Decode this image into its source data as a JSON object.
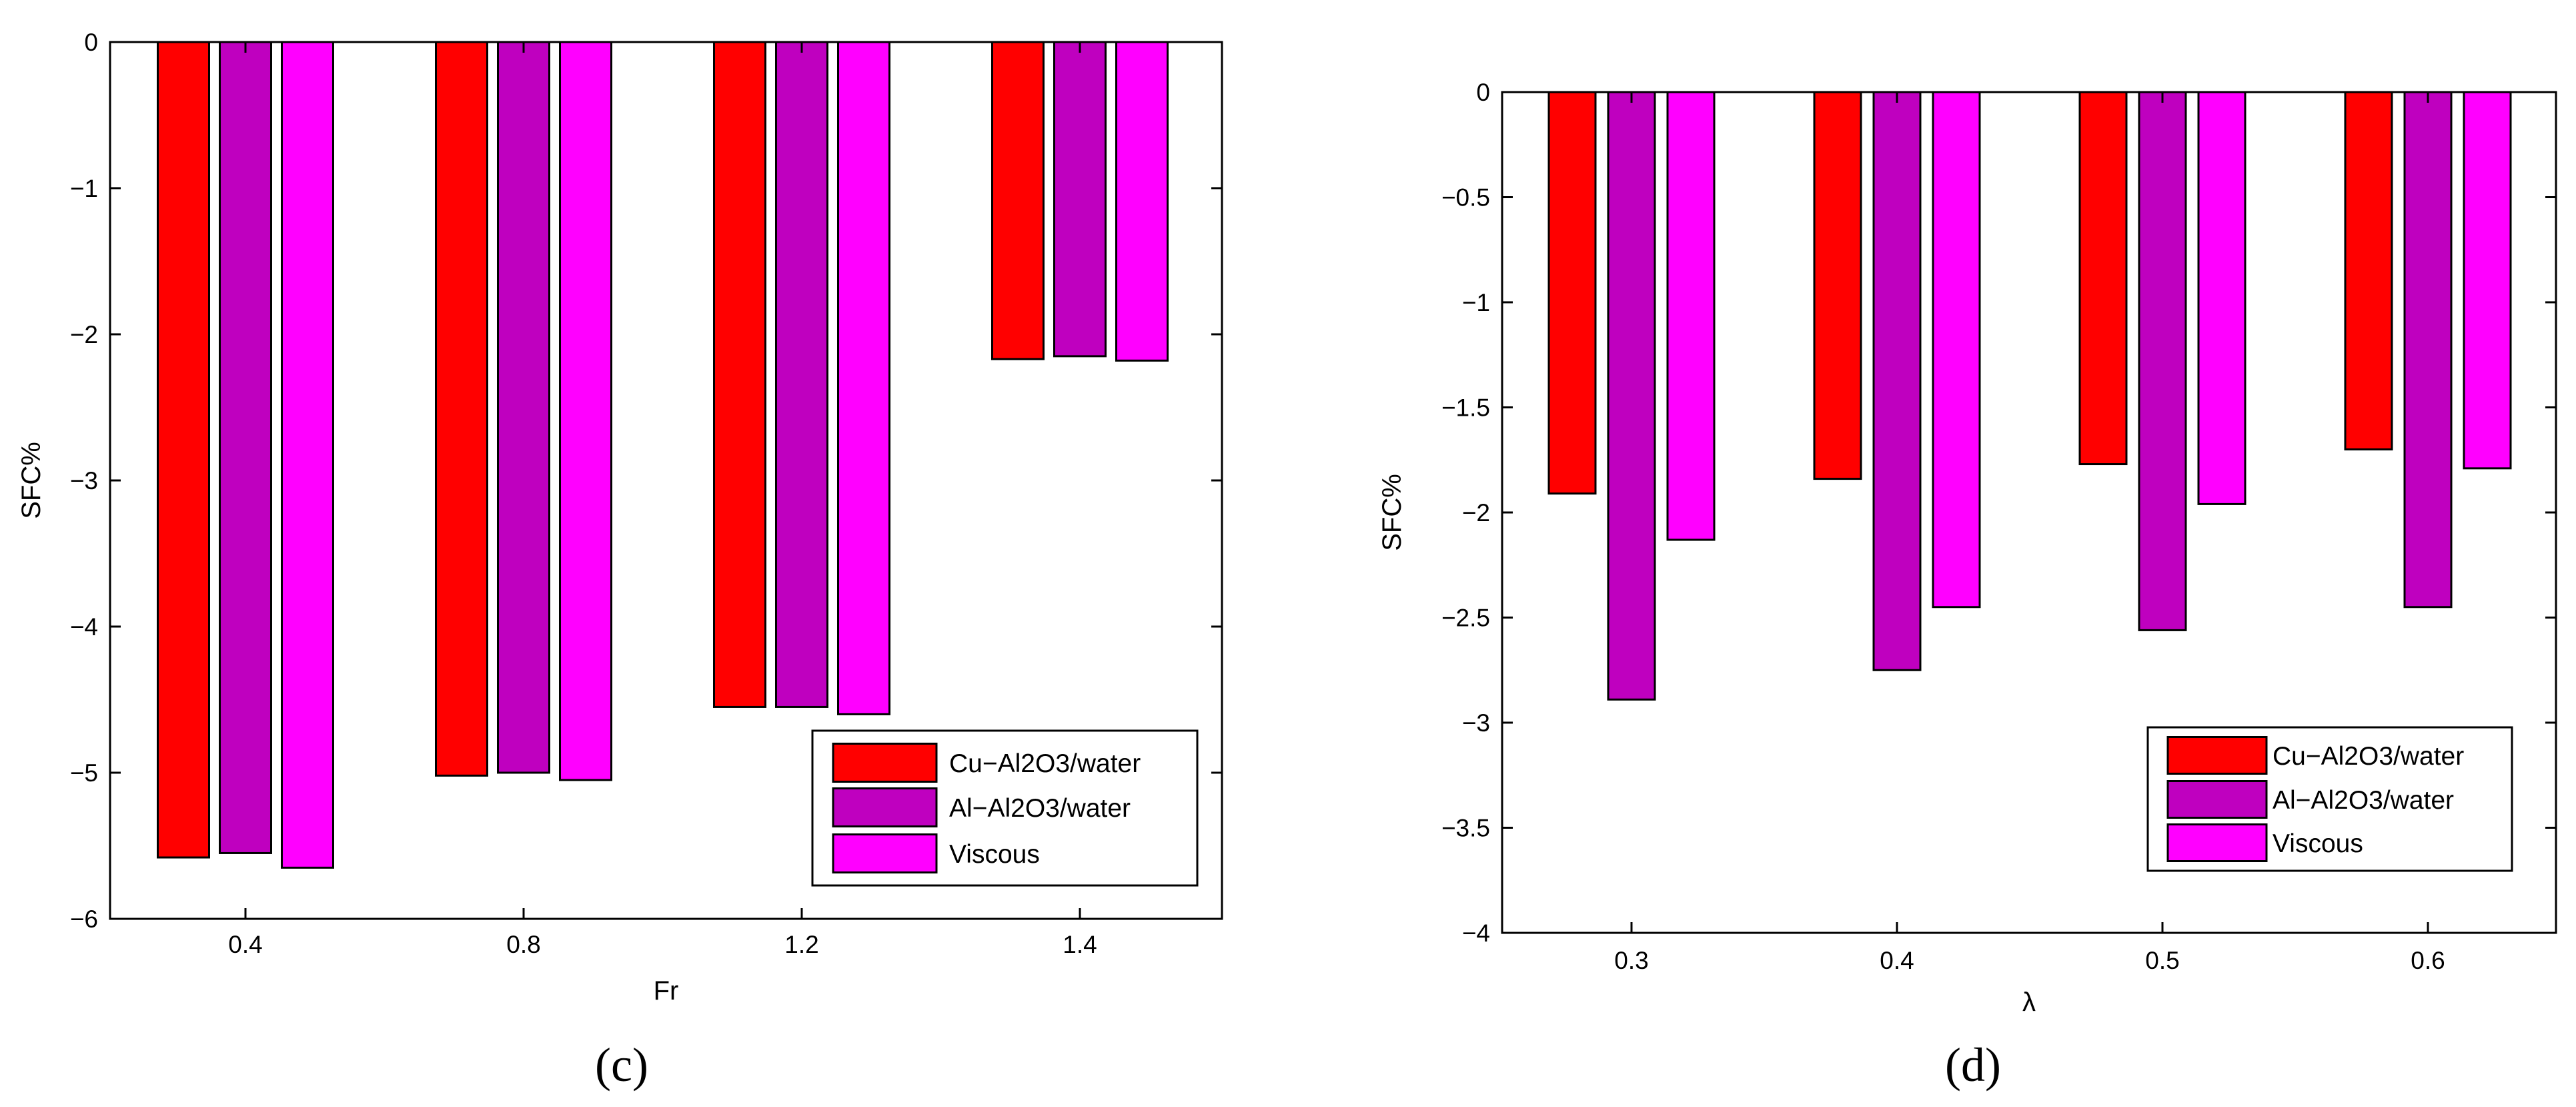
{
  "chart_data": [
    {
      "type": "bar",
      "panel_label": "(c)",
      "categories": [
        "0.4",
        "0.8",
        "1.2",
        "1.4"
      ],
      "series": [
        {
          "name": "Cu-Al2O3/water",
          "color": "#ff0000",
          "values": [
            -5.58,
            -5.02,
            -4.55,
            -2.17
          ]
        },
        {
          "name": "Al-Al2O3/water",
          "color": "#bf00bf",
          "values": [
            -5.55,
            -5.0,
            -4.55,
            -2.15
          ]
        },
        {
          "name": "Viscous",
          "color": "#ff00ff",
          "values": [
            -5.65,
            -5.05,
            -4.6,
            -2.18
          ]
        }
      ],
      "title": "",
      "xlabel": "Fr",
      "ylabel": "SFC%",
      "ylim": [
        -6,
        0
      ],
      "yticks": [
        0,
        -1,
        -2,
        -3,
        -4,
        -5,
        -6
      ],
      "ytick_labels": [
        "0",
        "−1",
        "−2",
        "−3",
        "−4",
        "−5",
        "−6"
      ],
      "legend_position": "bottom-right",
      "grid": false
    },
    {
      "type": "bar",
      "panel_label": "(d)",
      "categories": [
        "0.3",
        "0.4",
        "0.5",
        "0.6"
      ],
      "series": [
        {
          "name": "Cu-Al2O3/water",
          "color": "#ff0000",
          "values": [
            -1.91,
            -1.84,
            -1.77,
            -1.7
          ]
        },
        {
          "name": "Al-Al2O3/water",
          "color": "#bf00bf",
          "values": [
            -2.89,
            -2.75,
            -2.56,
            -2.45
          ]
        },
        {
          "name": "Viscous",
          "color": "#ff00ff",
          "values": [
            -2.13,
            -2.45,
            -1.96,
            -1.79
          ]
        }
      ],
      "title": "",
      "xlabel": "λ",
      "ylabel": "SFC%",
      "ylim": [
        -4,
        0
      ],
      "yticks": [
        0,
        -0.5,
        -1,
        -1.5,
        -2,
        -2.5,
        -3,
        -3.5,
        -4
      ],
      "ytick_labels": [
        "0",
        "−0.5",
        "−1",
        "−1.5",
        "−2",
        "−2.5",
        "−3",
        "−3.5",
        "−4"
      ],
      "legend_position": "bottom-right",
      "grid": false
    }
  ],
  "legend_labels": {
    "cu": "Cu−Al2O3/water",
    "al": "Al−Al2O3/water",
    "viscous": "Viscous"
  }
}
